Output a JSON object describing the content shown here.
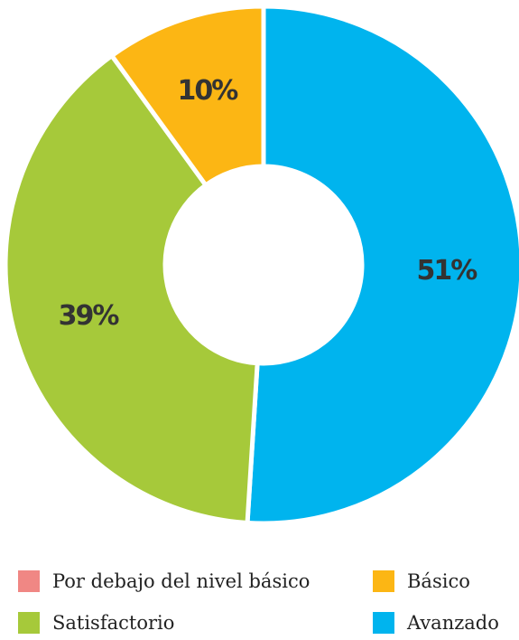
{
  "chart_data": {
    "type": "pie",
    "donut": true,
    "title": "",
    "categories": [
      "Por debajo del nivel básico",
      "Básico",
      "Satisfactorio",
      "Avanzado"
    ],
    "values": [
      0,
      10,
      39,
      51
    ],
    "value_labels": [
      "",
      "10%",
      "39%",
      "51%"
    ],
    "colors": [
      "#f08784",
      "#fcb614",
      "#a6c93a",
      "#00b4ee"
    ],
    "legend": {
      "position": "bottom",
      "entries": [
        {
          "label": "Por debajo del nivel básico",
          "color": "#f08784"
        },
        {
          "label": "Básico",
          "color": "#fcb614"
        },
        {
          "label": "Satisfactorio",
          "color": "#a6c93a"
        },
        {
          "label": "Avanzado",
          "color": "#00b4ee"
        }
      ]
    }
  }
}
